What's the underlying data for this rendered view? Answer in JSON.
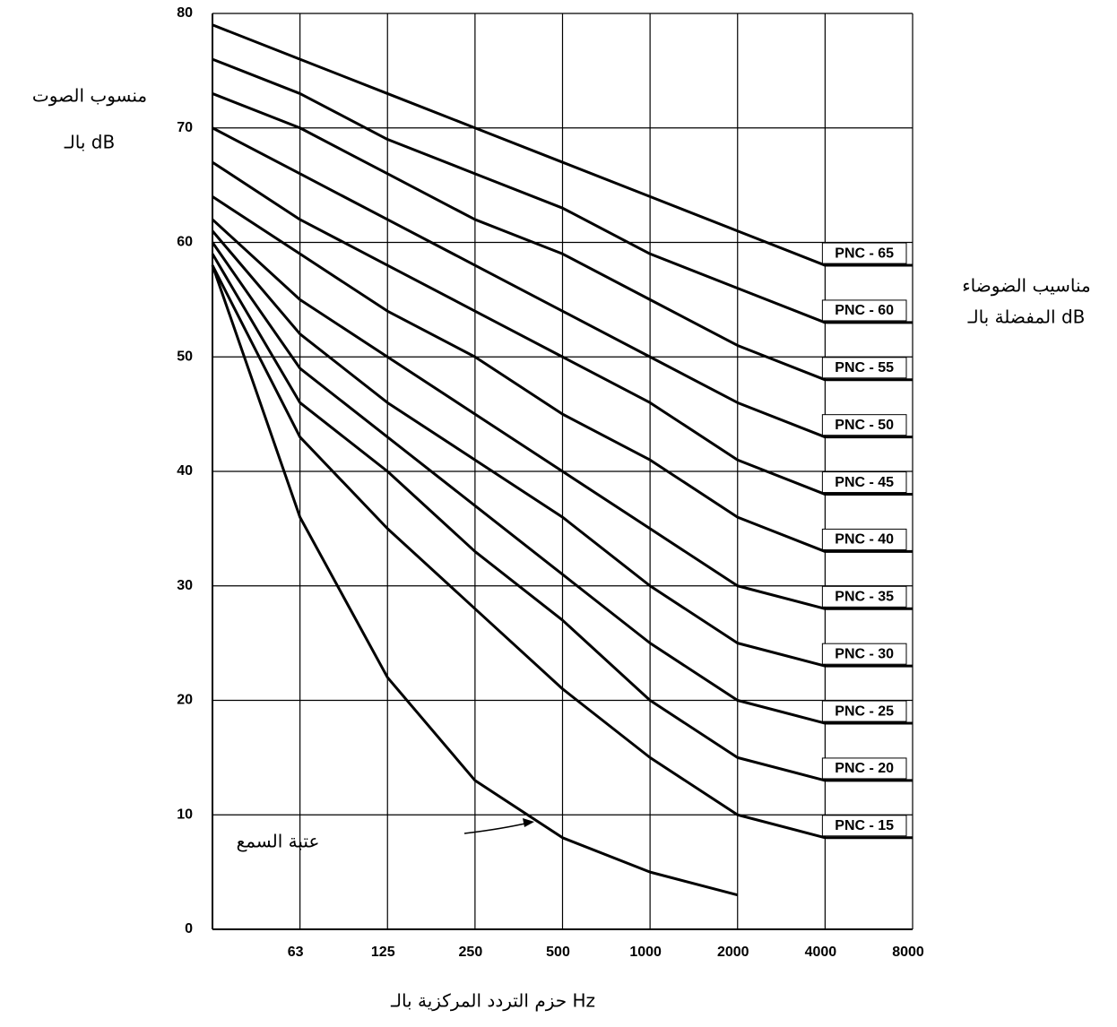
{
  "chart_data": {
    "type": "line",
    "y_label": [
      "منسوب الصوت",
      "بالـ dB"
    ],
    "legend_title": [
      "مناسيب الضوضاء",
      "المفضلة بالـ dB"
    ],
    "x_label": "حزم التردد المركزية بالـ Hz",
    "categories": [
      null,
      "63",
      "125",
      "250",
      "500",
      "1000",
      "2000",
      "4000",
      "8000"
    ],
    "ylim": [
      0,
      80
    ],
    "yticks": [
      0,
      10,
      20,
      30,
      40,
      50,
      60,
      70,
      80
    ],
    "grid": true,
    "color": "#000000",
    "series": [
      {
        "name": "PNC - 65",
        "values": [
          79,
          76,
          73,
          70,
          67,
          64,
          61,
          58,
          58
        ]
      },
      {
        "name": "PNC - 60",
        "values": [
          76,
          73,
          69,
          66,
          63,
          59,
          56,
          53,
          53
        ]
      },
      {
        "name": "PNC - 55",
        "values": [
          73,
          70,
          66,
          62,
          59,
          55,
          51,
          48,
          48
        ]
      },
      {
        "name": "PNC - 50",
        "values": [
          70,
          66,
          62,
          58,
          54,
          50,
          46,
          43,
          43
        ]
      },
      {
        "name": "PNC - 45",
        "values": [
          67,
          62,
          58,
          54,
          50,
          46,
          41,
          38,
          38
        ]
      },
      {
        "name": "PNC - 40",
        "values": [
          64,
          59,
          54,
          50,
          45,
          41,
          36,
          33,
          33
        ]
      },
      {
        "name": "PNC - 35",
        "values": [
          62,
          55,
          50,
          45,
          40,
          35,
          30,
          28,
          28
        ]
      },
      {
        "name": "PNC - 30",
        "values": [
          61,
          52,
          46,
          41,
          36,
          30,
          25,
          23,
          23
        ]
      },
      {
        "name": "PNC - 25",
        "values": [
          60,
          49,
          43,
          37,
          31,
          25,
          20,
          18,
          18
        ]
      },
      {
        "name": "PNC - 20",
        "values": [
          59,
          46,
          40,
          33,
          27,
          20,
          15,
          13,
          13
        ]
      },
      {
        "name": "PNC - 15",
        "values": [
          58,
          43,
          35,
          28,
          21,
          15,
          10,
          8,
          8
        ]
      },
      {
        "name": "عتبة السمع",
        "values": [
          58,
          36,
          22,
          13,
          8,
          5,
          3,
          null,
          null
        ]
      }
    ]
  }
}
